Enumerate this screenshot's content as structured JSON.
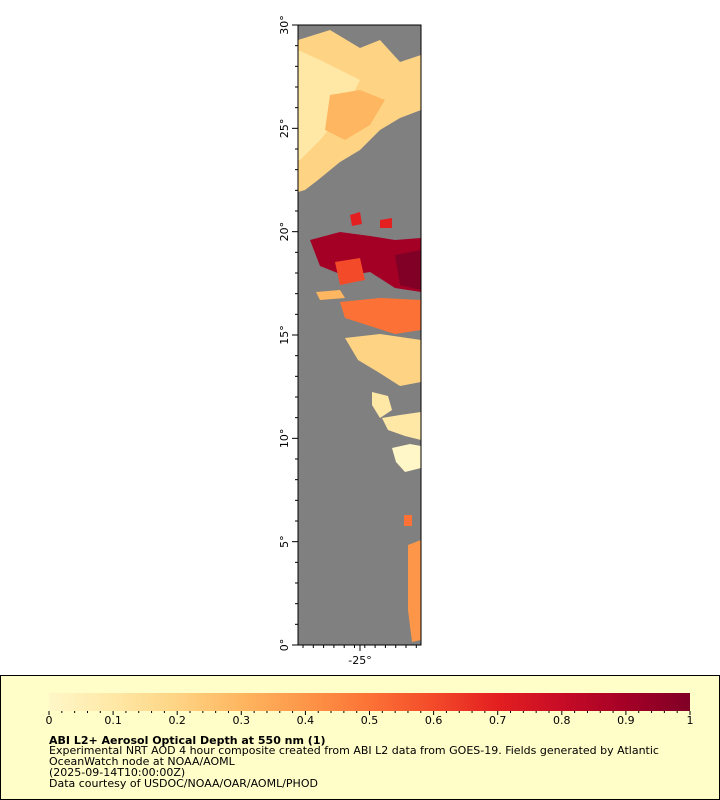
{
  "map": {
    "lat_labels": [
      "0°",
      "5°",
      "10°",
      "15°",
      "20°",
      "25°",
      "30°"
    ],
    "lon_labels": [
      "-25°"
    ],
    "lat_range": [
      0,
      30
    ],
    "land_color": "#808080"
  },
  "legend": {
    "tick_labels": [
      "0",
      "0.1",
      "0.2",
      "0.3",
      "0.4",
      "0.5",
      "0.6",
      "0.7",
      "0.8",
      "0.9",
      "1"
    ],
    "range": [
      0,
      1
    ],
    "colors": [
      "#fff7c8",
      "#ffe8a6",
      "#fed484",
      "#feb660",
      "#fd9648",
      "#fc7236",
      "#f34a2a",
      "#e31f20",
      "#c70c26",
      "#a40026",
      "#800026"
    ],
    "title": "ABI L2+ Aerosol Optical Depth at 550 nm (1)",
    "line1": "Experimental NRT AOD 4 hour composite created from ABI L2 data from GOES-19. Fields generated by Atlantic",
    "line2": "OceanWatch node at NOAA/AOML",
    "line3": "(2025-09-14T10:00:00Z)",
    "line4": "Data courtesy of USDOC/NOAA/OAR/AOML/PHOD"
  }
}
